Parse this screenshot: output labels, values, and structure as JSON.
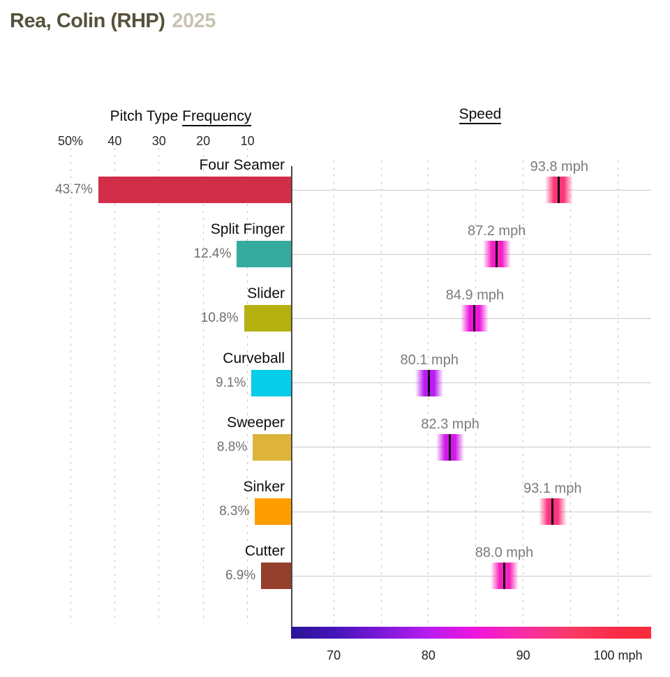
{
  "title": {
    "player": "Rea, Colin (RHP)",
    "year": "2025"
  },
  "headers": {
    "frequency_prefix": "Pitch Type ",
    "frequency_emph": "Frequency",
    "speed": "Speed"
  },
  "chart_data": {
    "type": "bar+scatter",
    "title": "Rea, Colin (RHP) 2025",
    "categories": [
      "Four Seamer",
      "Split Finger",
      "Slider",
      "Curveball",
      "Sweeper",
      "Sinker",
      "Cutter"
    ],
    "series": [
      {
        "name": "Pitch Type Frequency (%)",
        "values": [
          43.7,
          12.4,
          10.8,
          9.1,
          8.8,
          8.3,
          6.9
        ]
      },
      {
        "name": "Speed (mph)",
        "values": [
          93.8,
          87.2,
          84.9,
          80.1,
          82.3,
          93.1,
          88.0
        ]
      }
    ],
    "rows": [
      {
        "pitch": "Four Seamer",
        "freq_pct": 43.7,
        "freq_label": "43.7%",
        "bar_color": "#d22d49",
        "speed_mph": 93.8,
        "speed_label": "93.8 mph"
      },
      {
        "pitch": "Split Finger",
        "freq_pct": 12.4,
        "freq_label": "12.4%",
        "bar_color": "#35ab9e",
        "speed_mph": 87.2,
        "speed_label": "87.2 mph"
      },
      {
        "pitch": "Slider",
        "freq_pct": 10.8,
        "freq_label": "10.8%",
        "bar_color": "#b4b00f",
        "speed_mph": 84.9,
        "speed_label": "84.9 mph"
      },
      {
        "pitch": "Curveball",
        "freq_pct": 9.1,
        "freq_label": "9.1%",
        "bar_color": "#06cdea",
        "speed_mph": 80.1,
        "speed_label": "80.1 mph"
      },
      {
        "pitch": "Sweeper",
        "freq_pct": 8.8,
        "freq_label": "8.8%",
        "bar_color": "#ddb33a",
        "speed_mph": 82.3,
        "speed_label": "82.3 mph"
      },
      {
        "pitch": "Sinker",
        "freq_pct": 8.3,
        "freq_label": "8.3%",
        "bar_color": "#fe9d00",
        "speed_mph": 93.1,
        "speed_label": "93.1 mph"
      },
      {
        "pitch": "Cutter",
        "freq_pct": 6.9,
        "freq_label": "6.9%",
        "bar_color": "#933f2c",
        "speed_mph": 88.0,
        "speed_label": "88.0 mph"
      }
    ],
    "freq_axis": {
      "ticks": [
        {
          "label": "50%",
          "value": 50
        },
        {
          "label": "40",
          "value": 40
        },
        {
          "label": "30",
          "value": 30
        },
        {
          "label": "20",
          "value": 20
        },
        {
          "label": "10",
          "value": 10
        }
      ],
      "range": [
        0,
        52
      ],
      "direction": "right-to-left",
      "grid": true
    },
    "speed_axis": {
      "ticks": [
        {
          "label": "70",
          "value": 70
        },
        {
          "label": "80",
          "value": 80
        },
        {
          "label": "90",
          "value": 90
        },
        {
          "label": "100 mph",
          "value": 100
        }
      ],
      "gridline_values": [
        70,
        75,
        80,
        85,
        90,
        95,
        100
      ],
      "domain": [
        65.5,
        103.5
      ],
      "grid": true
    },
    "speed_colormap": [
      {
        "mph": 65.5,
        "color": "#2b1598"
      },
      {
        "mph": 70,
        "color": "#4314b8"
      },
      {
        "mph": 75,
        "color": "#7c17d9"
      },
      {
        "mph": 80,
        "color": "#b81df0"
      },
      {
        "mph": 85,
        "color": "#ee15dc"
      },
      {
        "mph": 90,
        "color": "#fc2ba4"
      },
      {
        "mph": 95,
        "color": "#fd3a67"
      },
      {
        "mph": 100,
        "color": "#fb2b45"
      },
      {
        "mph": 103.5,
        "color": "#f92d3a"
      }
    ],
    "colors": {
      "row_line": "#c9c9c9",
      "gridline": "#c2c2c2",
      "axis_line": "#4a4a4a",
      "label_gray": "#6f6f6f",
      "marker_center_line": "#150214"
    }
  }
}
